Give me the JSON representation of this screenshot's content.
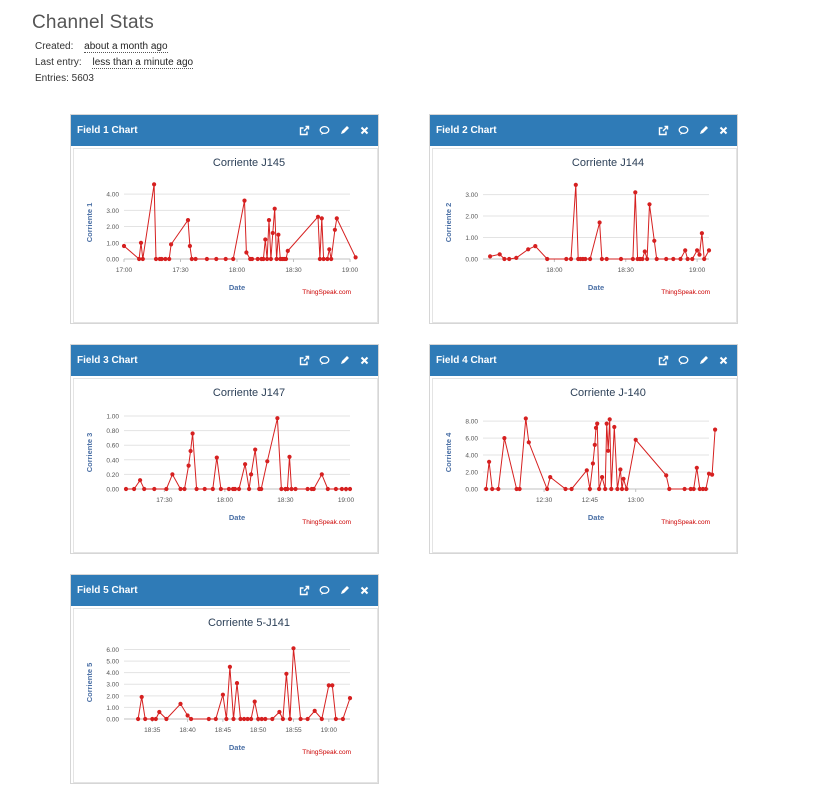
{
  "header": {
    "title": "Channel Stats",
    "created_label": "Created:",
    "created_value": "about a month ago",
    "last_entry_label": "Last entry:",
    "last_entry_value": "less than a minute ago",
    "entries_text": "Entries: 5603"
  },
  "panels": [
    {
      "title": "Field 1 Chart"
    },
    {
      "title": "Field 2 Chart"
    },
    {
      "title": "Field 3 Chart"
    },
    {
      "title": "Field 4 Chart"
    },
    {
      "title": "Field 5 Chart"
    }
  ],
  "icons": [
    "external-link-icon",
    "comment-icon",
    "pencil-icon",
    "close-icon"
  ],
  "colors": {
    "header_bar": "#2f7bb7",
    "series": "#d62020",
    "axis_title": "#4a6fa5",
    "credit": "#cc0000"
  },
  "chart_data": [
    {
      "type": "line",
      "title": "Corriente J145",
      "xlabel": "Date",
      "ylabel": "Corriente 1",
      "credit": "ThingSpeak.com",
      "x_range": [
        "17:00",
        "19:00"
      ],
      "x_ticks": [
        "17:00",
        "17:30",
        "18:00",
        "18:30",
        "19:00"
      ],
      "y_ticks": [
        "0.00",
        "1.00",
        "2.00",
        "3.00",
        "4.00"
      ],
      "ylim": [
        0,
        4.5
      ],
      "series": [
        {
          "x": [
            "17:00",
            "17:08",
            "17:09",
            "17:10",
            "17:16",
            "17:17",
            "17:19",
            "17:20",
            "17:22",
            "17:24",
            "17:25",
            "17:34",
            "17:35",
            "17:36",
            "17:38",
            "17:44",
            "17:49",
            "17:54",
            "17:58",
            "18:04",
            "18:05",
            "18:07",
            "18:08",
            "18:11",
            "18:13",
            "18:14",
            "18:15",
            "18:16",
            "18:17",
            "18:18",
            "18:19",
            "18:20",
            "18:21",
            "18:22",
            "18:23",
            "18:24",
            "18:25",
            "18:26",
            "18:27",
            "18:43",
            "18:44",
            "18:45",
            "18:46",
            "18:48",
            "18:49",
            "18:50",
            "18:52",
            "18:53",
            "19:03"
          ],
          "y": [
            0.8,
            0.0,
            1.0,
            0.0,
            4.6,
            0.0,
            0.0,
            0.0,
            0.0,
            0.0,
            0.9,
            2.4,
            0.8,
            0.0,
            0.0,
            0.0,
            0.0,
            0.0,
            0.0,
            3.6,
            0.4,
            0.0,
            0.0,
            0.0,
            0.0,
            0.0,
            1.2,
            0.0,
            2.4,
            0.0,
            1.6,
            3.1,
            0.0,
            1.5,
            0.0,
            0.0,
            0.0,
            0.0,
            0.5,
            2.6,
            0.0,
            2.5,
            0.0,
            0.0,
            0.6,
            0.0,
            1.8,
            2.5,
            0.1
          ]
        }
      ]
    },
    {
      "type": "line",
      "title": "Corriente J144",
      "xlabel": "Date",
      "ylabel": "Corriente 2",
      "credit": "ThingSpeak.com",
      "x_range": [
        "17:30",
        "19:05"
      ],
      "x_ticks": [
        "18:00",
        "18:30",
        "19:00"
      ],
      "y_ticks": [
        "0.00",
        "1.00",
        "2.00",
        "3.00"
      ],
      "ylim": [
        0,
        3.4
      ],
      "series": [
        {
          "x": [
            "17:33",
            "17:37",
            "17:39",
            "17:41",
            "17:44",
            "17:49",
            "17:52",
            "17:57",
            "18:05",
            "18:07",
            "18:09",
            "18:10",
            "18:11",
            "18:12",
            "18:13",
            "18:15",
            "18:19",
            "18:20",
            "18:22",
            "18:28",
            "18:33",
            "18:34",
            "18:35",
            "18:36",
            "18:37",
            "18:38",
            "18:39",
            "18:40",
            "18:42",
            "18:43",
            "18:47",
            "18:50",
            "18:53",
            "18:55",
            "18:56",
            "18:58",
            "19:00",
            "19:01",
            "19:02",
            "19:03",
            "19:05"
          ],
          "y": [
            0.12,
            0.22,
            0.0,
            0.0,
            0.05,
            0.45,
            0.6,
            0.0,
            0.0,
            0.0,
            3.45,
            0.0,
            0.0,
            0.0,
            0.0,
            0.0,
            1.7,
            0.0,
            0.0,
            0.0,
            0.0,
            3.1,
            0.0,
            0.0,
            0.0,
            0.35,
            0.0,
            2.55,
            0.85,
            0.0,
            0.0,
            0.0,
            0.0,
            0.4,
            0.0,
            0.0,
            0.4,
            0.2,
            1.2,
            0.0,
            0.4
          ]
        }
      ]
    },
    {
      "type": "line",
      "title": "Corriente J147",
      "xlabel": "Date",
      "ylabel": "Corriente 3",
      "credit": "ThingSpeak.com",
      "x_range": [
        "17:10",
        "19:02"
      ],
      "x_ticks": [
        "17:30",
        "18:00",
        "18:30",
        "19:00"
      ],
      "y_ticks": [
        "0.00",
        "0.20",
        "0.40",
        "0.60",
        "0.80",
        "1.00"
      ],
      "ylim": [
        0,
        1.0
      ],
      "series": [
        {
          "x": [
            "17:11",
            "17:15",
            "17:18",
            "17:20",
            "17:25",
            "17:31",
            "17:34",
            "17:38",
            "17:40",
            "17:42",
            "17:43",
            "17:44",
            "17:46",
            "17:50",
            "17:54",
            "17:56",
            "17:58",
            "18:02",
            "18:04",
            "18:05",
            "18:07",
            "18:10",
            "18:12",
            "18:13",
            "18:15",
            "18:17",
            "18:18",
            "18:21",
            "18:26",
            "18:28",
            "18:30",
            "18:31",
            "18:32",
            "18:33",
            "18:35",
            "18:41",
            "18:43",
            "18:44",
            "18:48",
            "18:51",
            "18:55",
            "18:58",
            "19:00",
            "19:02"
          ],
          "y": [
            0.0,
            0.0,
            0.12,
            0.0,
            0.0,
            0.0,
            0.2,
            0.0,
            0.0,
            0.32,
            0.52,
            0.76,
            0.0,
            0.0,
            0.0,
            0.43,
            0.0,
            0.0,
            0.0,
            0.0,
            0.0,
            0.34,
            0.0,
            0.2,
            0.54,
            0.0,
            0.0,
            0.38,
            0.97,
            0.0,
            0.0,
            0.0,
            0.44,
            0.0,
            0.0,
            0.0,
            0.0,
            0.0,
            0.2,
            0.0,
            0.0,
            0.0,
            0.0,
            0.0
          ]
        }
      ]
    },
    {
      "type": "line",
      "title": "Corriente J-140",
      "xlabel": "Date",
      "ylabel": "Corriente 4",
      "credit": "ThingSpeak.com",
      "x_range": [
        "12:10",
        "13:24"
      ],
      "x_ticks": [
        "12:30",
        "12:45",
        "13:00"
      ],
      "y_ticks": [
        "0.00",
        "2.00",
        "4.00",
        "6.00",
        "8.00"
      ],
      "ylim": [
        0,
        8.6
      ],
      "series": [
        {
          "x": [
            "12:11",
            "12:12",
            "12:13",
            "12:15",
            "12:17",
            "12:21",
            "12:22",
            "12:24",
            "12:25",
            "12:31",
            "12:32",
            "12:37",
            "12:39",
            "12:44",
            "12:45",
            "12:46",
            "12:46.6",
            "12:47",
            "12:47.4",
            "12:48",
            "12:49",
            "12:50",
            "12:50.5",
            "12:51",
            "12:51.5",
            "12:52",
            "12:53",
            "12:54",
            "12:55",
            "12:55.5",
            "12:56",
            "12:57",
            "13:00",
            "13:10",
            "13:11",
            "13:16",
            "13:18",
            "13:19",
            "13:20",
            "13:21",
            "13:22",
            "13:23",
            "13:24",
            "13:25",
            "13:26"
          ],
          "y": [
            0.0,
            3.2,
            0.0,
            0.0,
            6.0,
            0.0,
            0.0,
            8.3,
            5.5,
            0.0,
            1.4,
            0.0,
            0.0,
            2.2,
            0.0,
            3.0,
            5.2,
            7.2,
            7.7,
            0.0,
            1.4,
            0.0,
            7.7,
            4.5,
            8.2,
            0.0,
            7.3,
            0.0,
            2.3,
            0.0,
            1.2,
            0.0,
            5.8,
            1.6,
            0.0,
            0.0,
            0.0,
            0.0,
            2.5,
            0.0,
            0.0,
            0.0,
            1.8,
            1.7,
            7.0
          ]
        }
      ]
    },
    {
      "type": "line",
      "title": "Corriente 5-J141",
      "xlabel": "Date",
      "ylabel": "Corriente 5",
      "credit": "ThingSpeak.com",
      "x_range": [
        "18:31",
        "19:03"
      ],
      "x_ticks": [
        "18:35",
        "18:40",
        "18:45",
        "18:50",
        "18:55",
        "19:00"
      ],
      "y_ticks": [
        "0.00",
        "1.00",
        "2.00",
        "3.00",
        "4.00",
        "5.00",
        "6.00"
      ],
      "ylim": [
        0,
        6.3
      ],
      "series": [
        {
          "x": [
            "18:33",
            "18:33.5",
            "18:34",
            "18:35",
            "18:35.5",
            "18:36",
            "18:37",
            "18:39",
            "18:40",
            "18:40.5",
            "18:43",
            "18:44",
            "18:45",
            "18:45.5",
            "18:46",
            "18:46.5",
            "18:47",
            "18:47.5",
            "18:48",
            "18:48.5",
            "18:49",
            "18:49.5",
            "18:50",
            "18:50.5",
            "18:51",
            "18:52",
            "18:53",
            "18:53.5",
            "18:54",
            "18:54.5",
            "18:55",
            "18:56",
            "18:57",
            "18:58",
            "18:59",
            "19:00",
            "19:00.5",
            "19:01",
            "19:02",
            "19:03"
          ],
          "y": [
            0.0,
            1.9,
            0.0,
            0.0,
            0.0,
            0.6,
            0.0,
            1.3,
            0.3,
            0.0,
            0.0,
            0.0,
            2.1,
            0.0,
            4.5,
            0.0,
            3.1,
            0.0,
            0.0,
            0.0,
            0.0,
            1.5,
            0.0,
            0.0,
            0.0,
            0.0,
            0.6,
            0.0,
            3.9,
            0.0,
            6.1,
            0.0,
            0.0,
            0.7,
            0.0,
            2.9,
            2.9,
            0.0,
            0.0,
            1.8
          ]
        }
      ]
    }
  ]
}
